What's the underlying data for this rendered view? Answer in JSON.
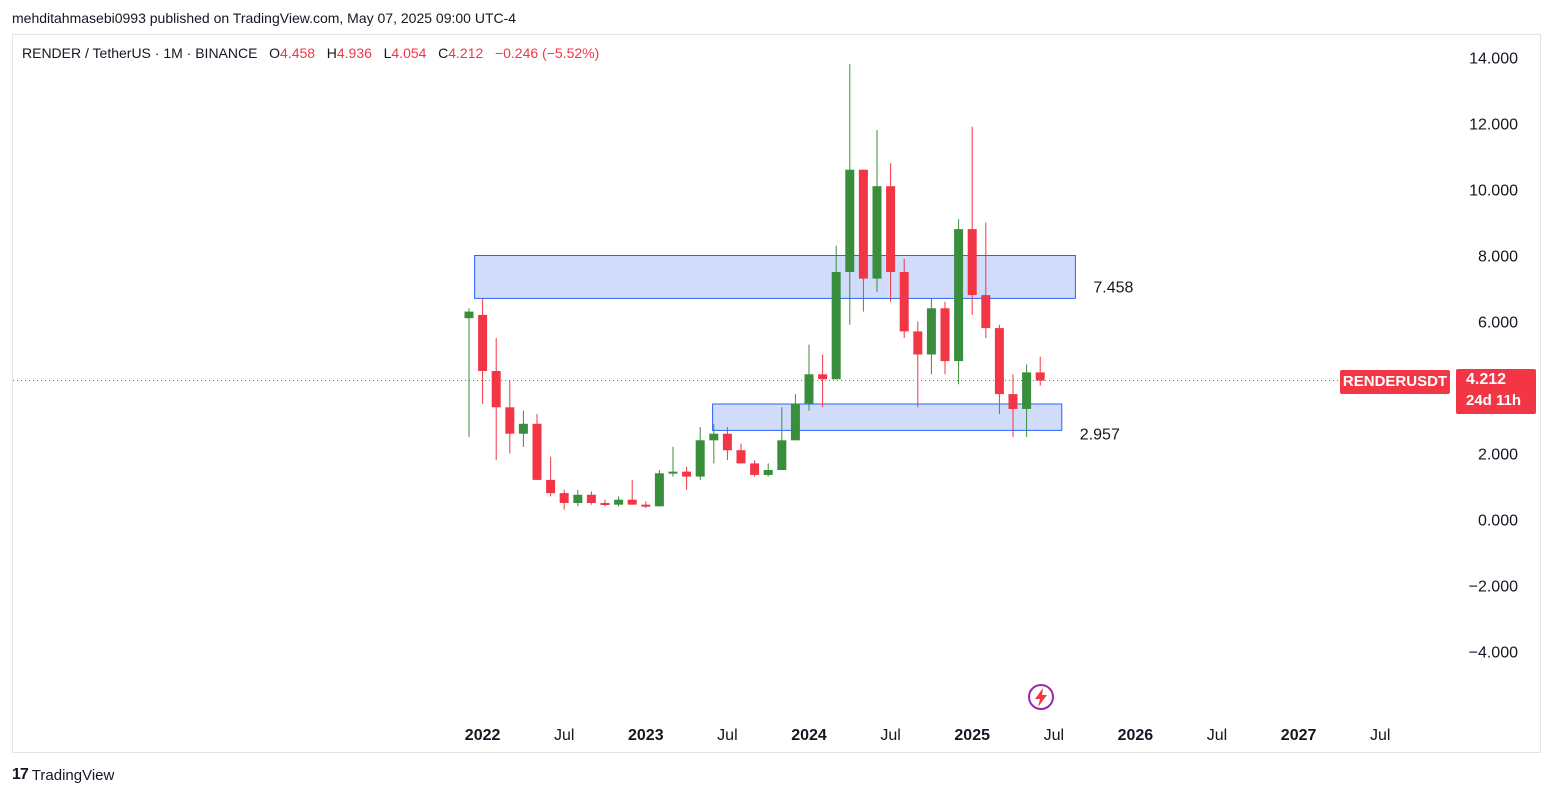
{
  "publisher_line": "mehditahmasebi0993 published on TradingView.com, May 07, 2025 09:00 UTC-4",
  "legend": {
    "symbol_line": "RENDER / TetherUS · 1M · BINANCE",
    "o_label": "O",
    "o_value": "4.458",
    "h_label": "H",
    "h_value": "4.936",
    "l_label": "L",
    "l_value": "4.054",
    "c_label": "C",
    "c_value": "4.212",
    "change": "−0.246 (−5.52%)"
  },
  "price_tag": {
    "symbol": "RENDERUSDT",
    "price": "4.212",
    "countdown": "24d 11h"
  },
  "footer": {
    "logo": "17",
    "brand": "TradingView"
  },
  "colors": {
    "up": "#388e3c",
    "down": "#f23645",
    "zone_fill": "#d1dcfb",
    "zone_border": "#2962ff",
    "last_price_line": "#f23645"
  },
  "icons": {
    "lightning": "lightning-icon"
  },
  "chart_data": {
    "type": "candlestick",
    "interval": "1M",
    "ylim": [
      -5.2,
      14.7
    ],
    "y_ticks": [
      "14.000",
      "12.000",
      "10.000",
      "8.000",
      "6.000",
      "4.000",
      "2.000",
      "0.000",
      "−2.000",
      "−4.000"
    ],
    "y_tick_values": [
      14,
      12,
      10,
      8,
      6,
      4,
      2,
      0,
      -2,
      -4
    ],
    "x_ticks": [
      {
        "label": "2022",
        "bold": true,
        "t": 1
      },
      {
        "label": "Jul",
        "bold": false,
        "t": 7
      },
      {
        "label": "2023",
        "bold": true,
        "t": 13
      },
      {
        "label": "Jul",
        "bold": false,
        "t": 19
      },
      {
        "label": "2024",
        "bold": true,
        "t": 25
      },
      {
        "label": "Jul",
        "bold": false,
        "t": 31
      },
      {
        "label": "2025",
        "bold": true,
        "t": 37
      },
      {
        "label": "Jul",
        "bold": false,
        "t": 43
      },
      {
        "label": "2026",
        "bold": true,
        "t": 49
      },
      {
        "label": "Jul",
        "bold": false,
        "t": 55
      },
      {
        "label": "2027",
        "bold": true,
        "t": 61
      },
      {
        "label": "Jul",
        "bold": false,
        "t": 67
      }
    ],
    "candles": [
      {
        "o": 6.1,
        "h": 6.4,
        "l": 2.5,
        "c": 6.3
      },
      {
        "o": 6.2,
        "h": 6.7,
        "l": 3.5,
        "c": 4.5
      },
      {
        "o": 4.5,
        "h": 5.5,
        "l": 1.8,
        "c": 3.4
      },
      {
        "o": 3.4,
        "h": 4.2,
        "l": 2.0,
        "c": 2.6
      },
      {
        "o": 2.6,
        "h": 3.3,
        "l": 2.2,
        "c": 2.9
      },
      {
        "o": 2.9,
        "h": 3.2,
        "l": 1.2,
        "c": 1.2
      },
      {
        "o": 1.2,
        "h": 1.9,
        "l": 0.7,
        "c": 0.8
      },
      {
        "o": 0.8,
        "h": 0.9,
        "l": 0.3,
        "c": 0.5
      },
      {
        "o": 0.5,
        "h": 0.9,
        "l": 0.4,
        "c": 0.75
      },
      {
        "o": 0.75,
        "h": 0.85,
        "l": 0.45,
        "c": 0.5
      },
      {
        "o": 0.5,
        "h": 0.6,
        "l": 0.4,
        "c": 0.45
      },
      {
        "o": 0.45,
        "h": 0.7,
        "l": 0.4,
        "c": 0.6
      },
      {
        "o": 0.6,
        "h": 1.2,
        "l": 0.45,
        "c": 0.45
      },
      {
        "o": 0.45,
        "h": 0.55,
        "l": 0.35,
        "c": 0.4
      },
      {
        "o": 0.4,
        "h": 1.5,
        "l": 0.4,
        "c": 1.4
      },
      {
        "o": 1.4,
        "h": 2.2,
        "l": 1.3,
        "c": 1.45
      },
      {
        "o": 1.45,
        "h": 1.6,
        "l": 0.9,
        "c": 1.3
      },
      {
        "o": 1.3,
        "h": 2.8,
        "l": 1.2,
        "c": 2.4
      },
      {
        "o": 2.4,
        "h": 2.9,
        "l": 1.7,
        "c": 2.6
      },
      {
        "o": 2.6,
        "h": 2.8,
        "l": 1.8,
        "c": 2.1
      },
      {
        "o": 2.1,
        "h": 2.3,
        "l": 1.7,
        "c": 1.7
      },
      {
        "o": 1.7,
        "h": 1.8,
        "l": 1.3,
        "c": 1.35
      },
      {
        "o": 1.35,
        "h": 1.7,
        "l": 1.3,
        "c": 1.5
      },
      {
        "o": 1.5,
        "h": 3.4,
        "l": 1.5,
        "c": 2.4
      },
      {
        "o": 2.4,
        "h": 3.8,
        "l": 2.4,
        "c": 3.5
      },
      {
        "o": 3.5,
        "h": 5.3,
        "l": 3.3,
        "c": 4.4
      },
      {
        "o": 4.4,
        "h": 5.0,
        "l": 3.4,
        "c": 4.25
      },
      {
        "o": 4.25,
        "h": 8.3,
        "l": 4.25,
        "c": 7.5
      },
      {
        "o": 7.5,
        "h": 13.8,
        "l": 5.9,
        "c": 10.6
      },
      {
        "o": 10.6,
        "h": 10.6,
        "l": 6.3,
        "c": 7.3
      },
      {
        "o": 7.3,
        "h": 11.8,
        "l": 6.9,
        "c": 10.1
      },
      {
        "o": 10.1,
        "h": 10.8,
        "l": 6.6,
        "c": 7.5
      },
      {
        "o": 7.5,
        "h": 7.9,
        "l": 5.5,
        "c": 5.7
      },
      {
        "o": 5.7,
        "h": 6.0,
        "l": 3.4,
        "c": 5.0
      },
      {
        "o": 5.0,
        "h": 6.7,
        "l": 4.4,
        "c": 6.4
      },
      {
        "o": 6.4,
        "h": 6.6,
        "l": 4.4,
        "c": 4.8
      },
      {
        "o": 4.8,
        "h": 9.1,
        "l": 4.1,
        "c": 8.8
      },
      {
        "o": 8.8,
        "h": 11.9,
        "l": 6.2,
        "c": 6.8
      },
      {
        "o": 6.8,
        "h": 9.0,
        "l": 5.5,
        "c": 5.8
      },
      {
        "o": 5.8,
        "h": 5.9,
        "l": 3.2,
        "c": 3.8
      },
      {
        "o": 3.8,
        "h": 4.4,
        "l": 2.5,
        "c": 3.35
      },
      {
        "o": 3.35,
        "h": 4.7,
        "l": 2.5,
        "c": 4.458
      },
      {
        "o": 4.458,
        "h": 4.936,
        "l": 4.054,
        "c": 4.212
      }
    ],
    "zones": [
      {
        "t_start": 1,
        "t_end": 44,
        "top": 8.0,
        "bottom": 6.7,
        "label": "7.458"
      },
      {
        "t_start": 18.5,
        "t_end": 43,
        "top": 3.5,
        "bottom": 2.7,
        "label": "2.957"
      }
    ],
    "last_price": 4.212,
    "grid": false
  }
}
